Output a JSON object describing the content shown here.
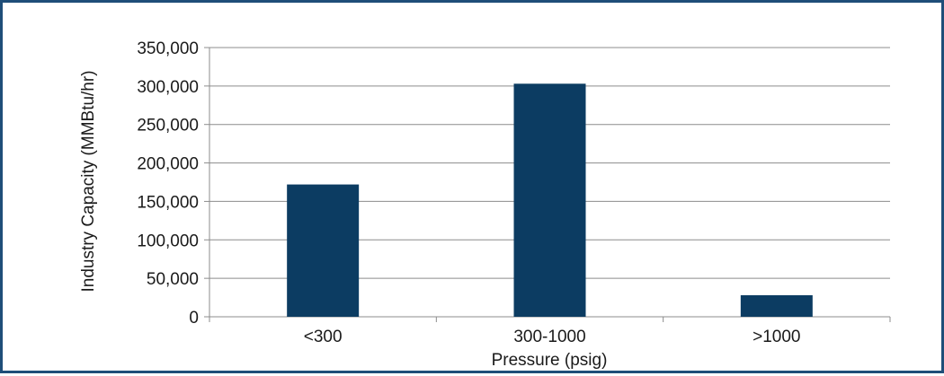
{
  "chart_data": {
    "type": "bar",
    "categories": [
      "<300",
      "300-1000",
      ">1000"
    ],
    "values": [
      172000,
      303000,
      28000
    ],
    "title": "",
    "xlabel": "Pressure (psig)",
    "ylabel": "Industry Capacity (MMBtu/hr)",
    "ylim": [
      0,
      350000
    ],
    "yticks": [
      0,
      50000,
      100000,
      150000,
      200000,
      250000,
      300000,
      350000
    ],
    "ytick_labels": [
      "0",
      "50,000",
      "100,000",
      "150,000",
      "200,000",
      "250,000",
      "300,000",
      "350,000"
    ],
    "grid": true,
    "legend": "none",
    "colors": {
      "bar": "#0c3c62",
      "grid": "#8c8c8c",
      "frame_border": "#1f4e79"
    }
  }
}
